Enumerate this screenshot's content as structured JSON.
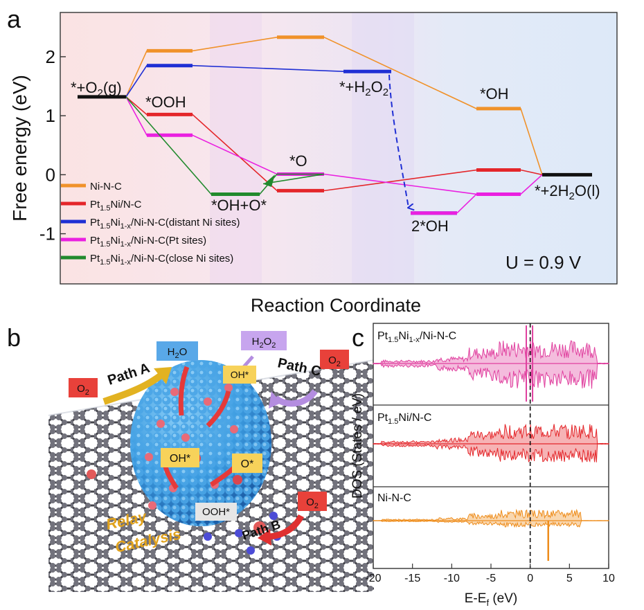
{
  "panel_labels": {
    "a": "a",
    "b": "b",
    "c": "c"
  },
  "chart_data": [
    {
      "type": "line",
      "panel": "a",
      "ylabel": "Free energy (eV)",
      "xlabel": "Reaction Coordinate",
      "ylim": [
        -1.85,
        2.75
      ],
      "yticks": [
        -1,
        0,
        1,
        2
      ],
      "annotation": "U = 0.9 V",
      "labels": {
        "start": "*+O",
        "ooh": "*OOH",
        "h2o2": "*+H",
        "ohpo": "*OH+O*",
        "o": "*O",
        "oh": "*OH",
        "two_oh": "2*OH",
        "end": "*+2H"
      },
      "common": {
        "start": 1.32,
        "end": 0.0
      },
      "series": [
        {
          "name": "Ni-N-C",
          "color": "#f0922a",
          "levels": [
            2.1,
            2.33,
            1.12
          ]
        },
        {
          "name": "Pt1.5Ni/N-C",
          "color": "#e4262a",
          "levels": [
            1.02,
            -0.27,
            0.08
          ]
        },
        {
          "name": "Pt1.5Ni1-x/Ni-N-C(distant Ni sites)",
          "color": "#1f2fd4",
          "levels": [
            1.85,
            1.75,
            -0.65
          ]
        },
        {
          "name": "Pt1.5Ni1-x/Ni-N-C(Pt sites)",
          "color": "#ea20e0",
          "levels": [
            0.67,
            0.01,
            -0.33
          ]
        },
        {
          "name": "Pt1.5Ni1-x/Ni-N-C(close Ni sites)",
          "color": "#218a2d",
          "levels": [
            -0.33,
            0.01
          ]
        }
      ],
      "legend_placement": "bottom-left"
    },
    {
      "type": "area",
      "panel": "c",
      "xlabel": "E-E",
      "ylabel": "DOS (States / eV)",
      "xlim": [
        -20,
        10
      ],
      "xticks": [
        -20,
        -15,
        -10,
        -5,
        0,
        5,
        10
      ],
      "fermi_level": 0,
      "series": [
        {
          "name": "Pt1.5Ni1-x/Ni-N-C",
          "color": "#e0409f"
        },
        {
          "name": "Pt1.5Ni/N-C",
          "color": "#e4262a"
        },
        {
          "name": "Ni-N-C",
          "color": "#ee8c1a"
        }
      ]
    }
  ],
  "legend_a": [
    {
      "main": "Ni-N-C",
      "sub": "",
      "mid": "",
      "sub2": "",
      "tail": "",
      "color": "#f0922a"
    },
    {
      "main": "Pt",
      "sub": "1.5",
      "mid": "Ni/N-C",
      "sub2": "",
      "tail": "",
      "color": "#e4262a"
    },
    {
      "main": "Pt",
      "sub": "1.5",
      "mid": "Ni",
      "sub2": "1-x",
      "tail": "/Ni-N-C(distant Ni sites)",
      "color": "#1f2fd4"
    },
    {
      "main": "Pt",
      "sub": "1.5",
      "mid": "Ni",
      "sub2": "1-x",
      "tail": "/Ni-N-C(Pt sites)",
      "color": "#ea20e0"
    },
    {
      "main": "Pt",
      "sub": "1.5",
      "mid": "Ni",
      "sub2": "1-x",
      "tail": "/Ni-N-C(close Ni sites)",
      "color": "#218a2d"
    }
  ],
  "scheme_b": {
    "h2o": "H",
    "h2o2": "H",
    "o2": "O",
    "path_a": "Path A",
    "path_b": "Path B",
    "path_c": "Path C",
    "oh_star_left": "OH*",
    "oh_star_right": "OH*",
    "o_star": "O*",
    "ooh_star": "OOH*",
    "relay": "Relay",
    "catalysis": "Catalysis"
  }
}
